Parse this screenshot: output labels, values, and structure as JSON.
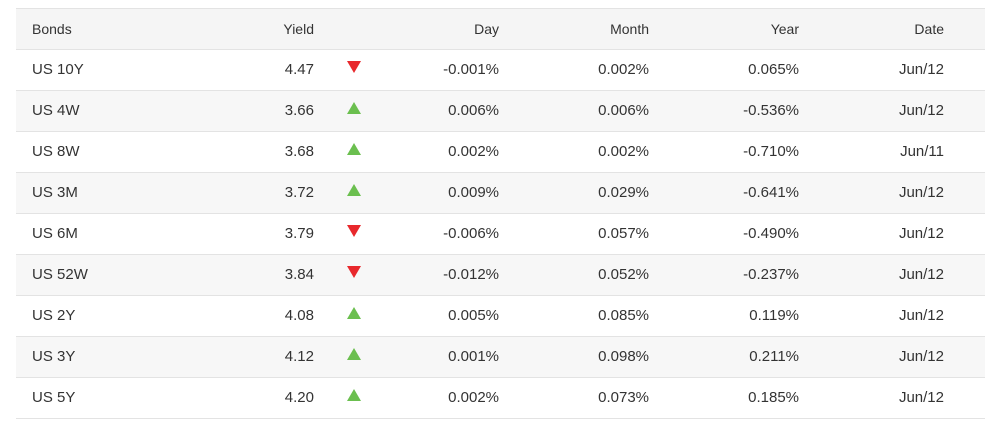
{
  "colors": {
    "up": "#6bbf4f",
    "down": "#e8282c",
    "header_bg": "#f5f5f5",
    "stripe_bg": "#f7f7f7",
    "border": "#e3e3e3"
  },
  "table": {
    "headers": {
      "bonds": "Bonds",
      "yield": "Yield",
      "day": "Day",
      "month": "Month",
      "year": "Year",
      "date": "Date"
    },
    "rows": [
      {
        "name": "US 10Y",
        "yield": "4.47",
        "direction": "down",
        "day": "-0.001%",
        "month": "0.002%",
        "year": "0.065%",
        "date": "Jun/12"
      },
      {
        "name": "US 4W",
        "yield": "3.66",
        "direction": "up",
        "day": "0.006%",
        "month": "0.006%",
        "year": "-0.536%",
        "date": "Jun/12"
      },
      {
        "name": "US 8W",
        "yield": "3.68",
        "direction": "up",
        "day": "0.002%",
        "month": "0.002%",
        "year": "-0.710%",
        "date": "Jun/11"
      },
      {
        "name": "US 3M",
        "yield": "3.72",
        "direction": "up",
        "day": "0.009%",
        "month": "0.029%",
        "year": "-0.641%",
        "date": "Jun/12"
      },
      {
        "name": "US 6M",
        "yield": "3.79",
        "direction": "down",
        "day": "-0.006%",
        "month": "0.057%",
        "year": "-0.490%",
        "date": "Jun/12"
      },
      {
        "name": "US 52W",
        "yield": "3.84",
        "direction": "down",
        "day": "-0.012%",
        "month": "0.052%",
        "year": "-0.237%",
        "date": "Jun/12"
      },
      {
        "name": "US 2Y",
        "yield": "4.08",
        "direction": "up",
        "day": "0.005%",
        "month": "0.085%",
        "year": "0.119%",
        "date": "Jun/12"
      },
      {
        "name": "US 3Y",
        "yield": "4.12",
        "direction": "up",
        "day": "0.001%",
        "month": "0.098%",
        "year": "0.211%",
        "date": "Jun/12"
      },
      {
        "name": "US 5Y",
        "yield": "4.20",
        "direction": "up",
        "day": "0.002%",
        "month": "0.073%",
        "year": "0.185%",
        "date": "Jun/12"
      }
    ]
  }
}
